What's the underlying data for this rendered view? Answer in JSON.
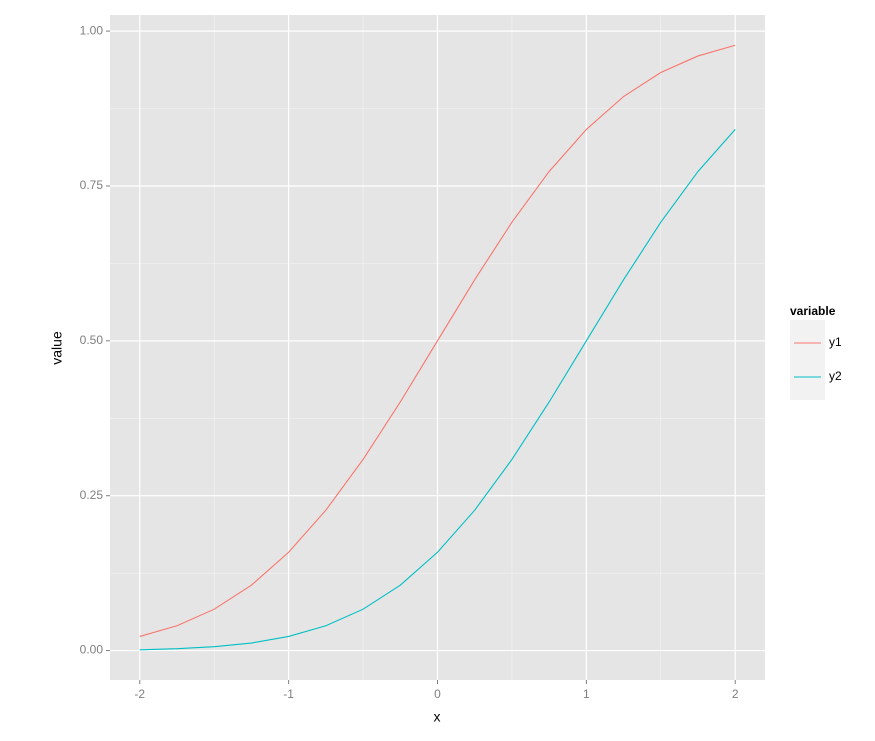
{
  "chart_data": {
    "type": "line",
    "x_label": "x",
    "y_label": "value",
    "x": [
      -2,
      -1.75,
      -1.5,
      -1.25,
      -1,
      -0.75,
      -0.5,
      -0.25,
      0,
      0.25,
      0.5,
      0.75,
      1,
      1.25,
      1.5,
      1.75,
      2
    ],
    "series": [
      {
        "name": "y1",
        "color": "#F8766D",
        "values": [
          0.0228,
          0.0401,
          0.0668,
          0.1056,
          0.1587,
          0.2266,
          0.3085,
          0.4013,
          0.5,
          0.5987,
          0.6915,
          0.7734,
          0.8413,
          0.8944,
          0.9332,
          0.9599,
          0.9772
        ]
      },
      {
        "name": "y2",
        "color": "#00BFC4",
        "values": [
          0.0013,
          0.003,
          0.0062,
          0.0122,
          0.0228,
          0.0401,
          0.0668,
          0.1056,
          0.1587,
          0.2266,
          0.3085,
          0.4013,
          0.5,
          0.5987,
          0.6915,
          0.7734,
          0.8413
        ]
      }
    ],
    "xlim": [
      -2.2,
      2.2
    ],
    "ylim": [
      -0.0475,
      1.026
    ],
    "xticks": [
      -2,
      -1,
      0,
      1,
      2
    ],
    "yticks": [
      {
        "value": 0,
        "label": "0.00"
      },
      {
        "value": 0.25,
        "label": "0.25"
      },
      {
        "value": 0.5,
        "label": "0.50"
      },
      {
        "value": 0.75,
        "label": "0.75"
      },
      {
        "value": 1,
        "label": "1.00"
      }
    ],
    "x_minor_ticks": [
      -1.5,
      -0.5,
      0.5,
      1.5
    ],
    "y_minor_ticks": [
      0.125,
      0.375,
      0.625,
      0.875
    ],
    "grid": true,
    "legend": {
      "title": "variable",
      "position": "right"
    }
  }
}
